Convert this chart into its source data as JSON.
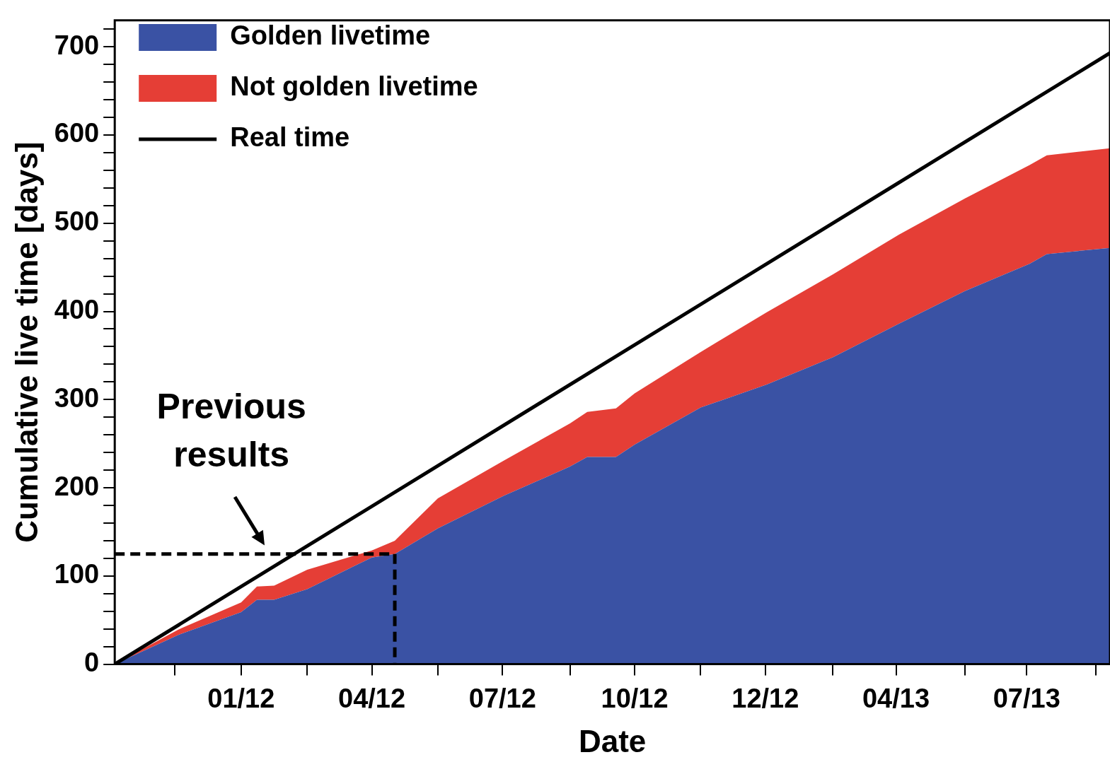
{
  "chart_data": {
    "type": "area",
    "xlabel": "Date",
    "ylabel": "Cumulative live time [days]",
    "stacked": true,
    "legend": "top left",
    "grid": false,
    "xlim": [
      "2011-10-05",
      "2013-08-28"
    ],
    "ylim": [
      0,
      730
    ],
    "xticks": [
      {
        "value": "2011-11-16",
        "label": null
      },
      {
        "value": "2012-01-01",
        "label": "01/12"
      },
      {
        "value": "2012-02-16",
        "label": null
      },
      {
        "value": "2012-04-01",
        "label": "04/12"
      },
      {
        "value": "2012-05-17",
        "label": null
      },
      {
        "value": "2012-07-01",
        "label": "07/12"
      },
      {
        "value": "2012-08-17",
        "label": null
      },
      {
        "value": "2012-10-01",
        "label": "10/12"
      },
      {
        "value": "2012-11-16",
        "label": null
      },
      {
        "value": "2012-12-31",
        "label": "12/12"
      },
      {
        "value": "2013-02-16",
        "label": null
      },
      {
        "value": "2013-04-01",
        "label": "04/13"
      },
      {
        "value": "2013-05-19",
        "label": null
      },
      {
        "value": "2013-07-01",
        "label": "07/13"
      },
      {
        "value": "2013-08-18",
        "label": null
      }
    ],
    "yticks": [
      0,
      {
        "value": 20,
        "label": null
      },
      {
        "value": 40,
        "label": null
      },
      {
        "value": 60,
        "label": null
      },
      {
        "value": 80,
        "label": null
      },
      100,
      {
        "value": 120,
        "label": null
      },
      {
        "value": 140,
        "label": null
      },
      {
        "value": 160,
        "label": null
      },
      {
        "value": 180,
        "label": null
      },
      200,
      {
        "value": 220,
        "label": null
      },
      {
        "value": 240,
        "label": null
      },
      {
        "value": 260,
        "label": null
      },
      {
        "value": 280,
        "label": null
      },
      300,
      {
        "value": 320,
        "label": null
      },
      {
        "value": 340,
        "label": null
      },
      {
        "value": 360,
        "label": null
      },
      {
        "value": 380,
        "label": null
      },
      400,
      {
        "value": 420,
        "label": null
      },
      {
        "value": 440,
        "label": null
      },
      {
        "value": 460,
        "label": null
      },
      {
        "value": 480,
        "label": null
      },
      500,
      {
        "value": 520,
        "label": null
      },
      {
        "value": 540,
        "label": null
      },
      {
        "value": 560,
        "label": null
      },
      {
        "value": 580,
        "label": null
      },
      600,
      {
        "value": 620,
        "label": null
      },
      {
        "value": 640,
        "label": null
      },
      {
        "value": 660,
        "label": null
      },
      {
        "value": 680,
        "label": null
      },
      700,
      {
        "value": 720,
        "label": null
      }
    ],
    "x": [
      "2011-10-05",
      "2011-11-18",
      "2012-01-01",
      "2012-01-12",
      "2012-01-24",
      "2012-02-16",
      "2012-04-01",
      "2012-04-17",
      "2012-05-17",
      "2012-07-02",
      "2012-08-17",
      "2012-08-29",
      "2012-09-18",
      "2012-10-01",
      "2012-11-16",
      "2013-01-01",
      "2013-02-16",
      "2013-04-03",
      "2013-05-19",
      "2013-07-03",
      "2013-07-15",
      "2013-08-28"
    ],
    "series": [
      {
        "name": "Golden livetime",
        "color": "#3a52a4",
        "values": [
          0,
          33,
          59,
          73,
          73,
          85,
          121,
          125,
          154,
          191,
          224,
          235,
          235,
          249,
          291,
          317,
          348,
          386,
          423,
          454,
          465,
          472
        ]
      },
      {
        "name": "Not golden livetime",
        "color": "#e53e36",
        "values": [
          0,
          6,
          11,
          15,
          16,
          22,
          8,
          15,
          34,
          40,
          49,
          51,
          55,
          58,
          63,
          82,
          94,
          101,
          105,
          112,
          112,
          113
        ]
      },
      {
        "name": "Real time",
        "type": "line",
        "color": "#000000",
        "x": [
          "2011-10-05",
          "2013-08-28"
        ],
        "values": [
          0,
          693
        ]
      },
      {
        "type": "line",
        "color": "#000000",
        "line_style": "dashed",
        "x": [
          "2011-10-05",
          "2012-04-17",
          "2012-04-17"
        ],
        "values": [
          125,
          125,
          0
        ]
      }
    ],
    "annotations": [
      "Previous results"
    ]
  }
}
